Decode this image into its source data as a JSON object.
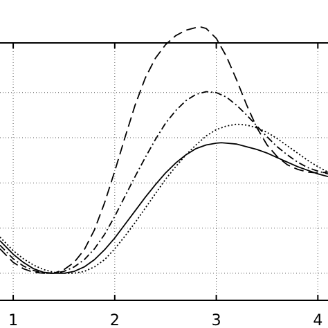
{
  "chart_data": {
    "type": "line",
    "title": "",
    "xlabel": "",
    "ylabel": "",
    "xlim": [
      0.87,
      4.1
    ],
    "ylim": [
      -0.3,
      2.55
    ],
    "grid": true,
    "x_ticks": [
      1,
      2,
      3,
      4
    ],
    "x_tick_labels": [
      "1",
      "2",
      "3",
      "4"
    ],
    "y_gridlines": [
      0,
      0.5,
      1.0,
      1.5,
      2.0
    ],
    "series": [
      {
        "style": "solid",
        "color": "#000000",
        "x": [
          0.87,
          1.0,
          1.1,
          1.2,
          1.3,
          1.4,
          1.5,
          1.6,
          1.7,
          1.8,
          1.9,
          2.0,
          2.1,
          2.2,
          2.3,
          2.4,
          2.5,
          2.6,
          2.7,
          2.8,
          2.9,
          3.0,
          3.05,
          3.1,
          3.2,
          3.3,
          3.4,
          3.5,
          3.6,
          3.7,
          3.8,
          3.9,
          4.0,
          4.1
        ],
        "y": [
          0.36,
          0.21,
          0.12,
          0.05,
          0.01,
          0.0,
          0.0,
          0.02,
          0.07,
          0.15,
          0.26,
          0.39,
          0.54,
          0.69,
          0.84,
          0.98,
          1.11,
          1.22,
          1.31,
          1.38,
          1.42,
          1.44,
          1.445,
          1.44,
          1.43,
          1.4,
          1.37,
          1.33,
          1.28,
          1.23,
          1.18,
          1.14,
          1.1,
          1.07
        ]
      },
      {
        "style": "dotted",
        "color": "#000000",
        "x": [
          0.87,
          1.0,
          1.1,
          1.2,
          1.3,
          1.4,
          1.5,
          1.6,
          1.7,
          1.8,
          1.9,
          2.0,
          2.1,
          2.2,
          2.3,
          2.4,
          2.5,
          2.6,
          2.7,
          2.8,
          2.9,
          3.0,
          3.1,
          3.2,
          3.3,
          3.4,
          3.5,
          3.6,
          3.7,
          3.8,
          3.9,
          4.0,
          4.1
        ],
        "y": [
          0.4,
          0.25,
          0.16,
          0.09,
          0.04,
          0.01,
          0.0,
          0.0,
          0.02,
          0.07,
          0.15,
          0.27,
          0.41,
          0.56,
          0.72,
          0.88,
          1.04,
          1.18,
          1.31,
          1.42,
          1.52,
          1.59,
          1.63,
          1.65,
          1.64,
          1.61,
          1.56,
          1.49,
          1.41,
          1.33,
          1.25,
          1.18,
          1.12
        ]
      },
      {
        "style": "dash-dot",
        "color": "#000000",
        "x": [
          0.87,
          1.0,
          1.1,
          1.2,
          1.3,
          1.4,
          1.5,
          1.6,
          1.7,
          1.8,
          1.9,
          2.0,
          2.1,
          2.2,
          2.3,
          2.4,
          2.5,
          2.6,
          2.7,
          2.8,
          2.9,
          3.0,
          3.1,
          3.2,
          3.3,
          3.4,
          3.5,
          3.6,
          3.7,
          3.8,
          3.9,
          4.0,
          4.1
        ],
        "y": [
          0.31,
          0.16,
          0.08,
          0.03,
          0.0,
          0.0,
          0.02,
          0.07,
          0.15,
          0.27,
          0.43,
          0.63,
          0.85,
          1.07,
          1.28,
          1.48,
          1.66,
          1.8,
          1.91,
          1.98,
          2.01,
          2.0,
          1.95,
          1.86,
          1.75,
          1.63,
          1.51,
          1.4,
          1.31,
          1.23,
          1.17,
          1.13,
          1.1
        ]
      },
      {
        "style": "dashed",
        "color": "#000000",
        "x": [
          0.87,
          1.0,
          1.1,
          1.2,
          1.3,
          1.4,
          1.5,
          1.6,
          1.7,
          1.8,
          1.9,
          2.0,
          2.1,
          2.2,
          2.3,
          2.4,
          2.5,
          2.6,
          2.7,
          2.8,
          2.85,
          2.9,
          3.0,
          3.1,
          3.2,
          3.3,
          3.4,
          3.5,
          3.6,
          3.7,
          3.8,
          3.9,
          4.0,
          4.1
        ],
        "y": [
          0.27,
          0.12,
          0.05,
          0.01,
          0.0,
          0.0,
          0.04,
          0.12,
          0.26,
          0.48,
          0.78,
          1.13,
          1.5,
          1.86,
          2.16,
          2.38,
          2.53,
          2.63,
          2.69,
          2.72,
          2.725,
          2.71,
          2.6,
          2.4,
          2.14,
          1.86,
          1.61,
          1.42,
          1.29,
          1.2,
          1.15,
          1.12,
          1.11,
          1.12
        ]
      }
    ]
  }
}
